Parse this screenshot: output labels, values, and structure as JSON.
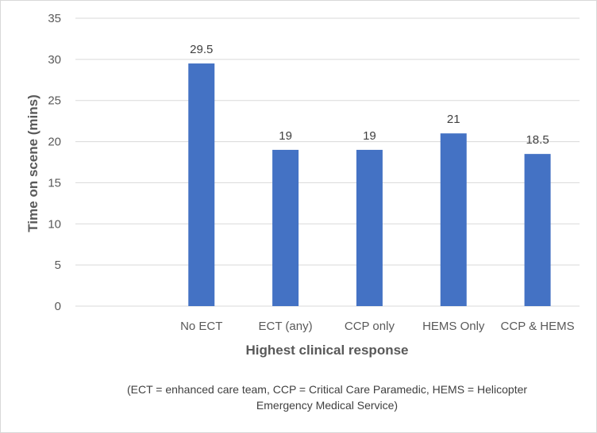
{
  "chart_data": {
    "type": "bar",
    "categories": [
      "",
      "No ECT",
      "ECT (any)",
      "CCP only",
      "HEMS Only",
      "CCP & HEMS"
    ],
    "values": [
      null,
      29.5,
      19,
      19,
      21,
      18.5
    ],
    "data_labels": [
      "",
      "29.5",
      "19",
      "19",
      "21",
      "18.5"
    ],
    "title": "",
    "xlabel": "Highest clinical response",
    "ylabel": "Time on scene (mins)",
    "ylim": [
      0,
      35
    ],
    "yticks": [
      0,
      5,
      10,
      15,
      20,
      25,
      30,
      35
    ],
    "grid": true,
    "legend": "none",
    "bar_color": "#4472C4",
    "grid_color": "#d9d9d9"
  },
  "footnote": {
    "line1": "(ECT = enhanced care team, CCP = Critical Care Paramedic, HEMS = Helicopter",
    "line2": "Emergency Medical Service)"
  }
}
